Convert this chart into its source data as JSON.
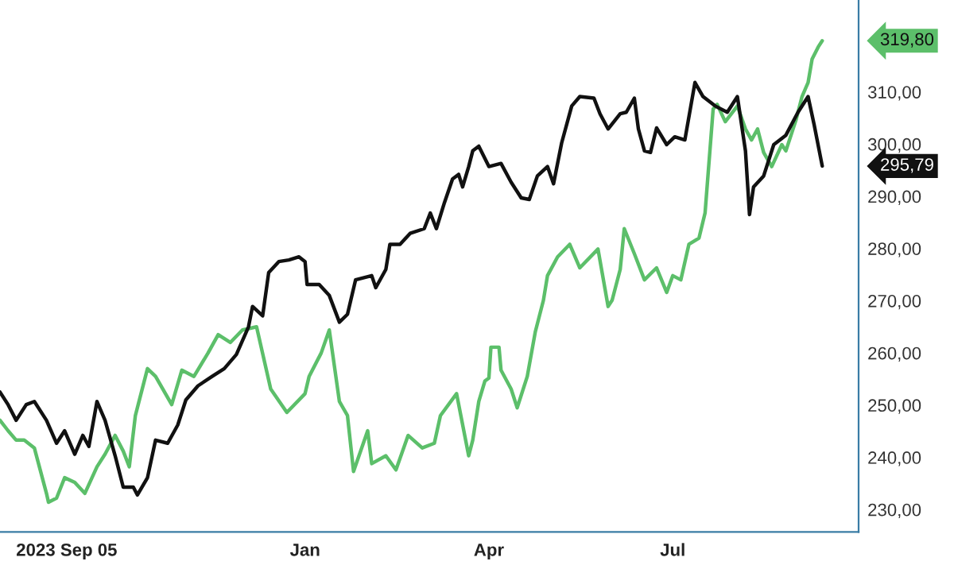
{
  "chart_data": {
    "type": "line",
    "xlim": [
      "2023-08-03",
      "2024-10-01"
    ],
    "ylim": [
      225.7,
      327.6
    ],
    "xticks": [
      {
        "value": "2023-09-05",
        "label": "2023 Sep 05"
      },
      {
        "value": "2024-01-01",
        "label": "Jan"
      },
      {
        "value": "2024-04-01",
        "label": "Apr"
      },
      {
        "value": "2024-07-01",
        "label": "Jul"
      }
    ],
    "yticks": [
      {
        "value": 230,
        "label": "230,00"
      },
      {
        "value": 240,
        "label": "240,00"
      },
      {
        "value": 250,
        "label": "250,00"
      },
      {
        "value": 260,
        "label": "260,00"
      },
      {
        "value": 270,
        "label": "270,00"
      },
      {
        "value": 280,
        "label": "280,00"
      },
      {
        "value": 290,
        "label": "290,00"
      },
      {
        "value": 300,
        "label": "300,00"
      },
      {
        "value": 310,
        "label": "310,00"
      }
    ],
    "grid": false,
    "legend": false,
    "annotations": [
      "319,80",
      "295,79"
    ],
    "series": [
      {
        "color": "#5cbf6a",
        "x": [
          "2023-08-03",
          "2023-08-07",
          "2023-08-11",
          "2023-08-15",
          "2023-08-20",
          "2023-08-26",
          "2023-08-27",
          "2023-08-31",
          "2023-09-04",
          "2023-09-09",
          "2023-09-14",
          "2023-09-20",
          "2023-09-24",
          "2023-09-29",
          "2023-10-03",
          "2023-10-06",
          "2023-10-09",
          "2023-10-15",
          "2023-10-19",
          "2023-10-27",
          "2023-11-01",
          "2023-11-07",
          "2023-11-14",
          "2023-11-19",
          "2023-11-25",
          "2023-12-01",
          "2023-12-08",
          "2023-12-15",
          "2023-12-23",
          "2024-01-01",
          "2024-01-03",
          "2024-01-09",
          "2024-01-13",
          "2024-01-18",
          "2024-01-22",
          "2024-01-25",
          "2024-02-01",
          "2024-02-03",
          "2024-02-10",
          "2024-02-15",
          "2024-02-21",
          "2024-02-28",
          "2024-03-05",
          "2024-03-08",
          "2024-03-16",
          "2024-03-22",
          "2024-03-24",
          "2024-03-27",
          "2024-03-30",
          "2024-04-01",
          "2024-04-02",
          "2024-04-06",
          "2024-04-07",
          "2024-04-12",
          "2024-04-15",
          "2024-04-20",
          "2024-04-24",
          "2024-04-28",
          "2024-04-30",
          "2024-05-05",
          "2024-05-11",
          "2024-05-16",
          "2024-05-25",
          "2024-05-30",
          "2024-06-01",
          "2024-06-05",
          "2024-06-07",
          "2024-06-12",
          "2024-06-17",
          "2024-06-23",
          "2024-06-28",
          "2024-07-01",
          "2024-07-05",
          "2024-07-09",
          "2024-07-14",
          "2024-07-17",
          "2024-07-21",
          "2024-07-23",
          "2024-07-27",
          "2024-08-02",
          "2024-08-06",
          "2024-08-09",
          "2024-08-12",
          "2024-08-15",
          "2024-08-19",
          "2024-08-24",
          "2024-08-26",
          "2024-08-31",
          "2024-09-03",
          "2024-09-06",
          "2024-09-08",
          "2024-09-11",
          "2024-09-13"
        ],
        "values": [
          247.1,
          245.1,
          243.3,
          243.3,
          241.8,
          233.1,
          231.4,
          232.2,
          236.1,
          235.2,
          233.1,
          238.2,
          240.6,
          244.2,
          241.2,
          238.2,
          248.0,
          257.0,
          255.5,
          250.1,
          256.7,
          255.5,
          260.0,
          263.5,
          262.0,
          264.4,
          265.0,
          253.1,
          248.6,
          252.2,
          255.5,
          260.0,
          264.4,
          250.7,
          248.0,
          237.3,
          245.1,
          238.8,
          240.3,
          237.6,
          244.2,
          241.8,
          242.7,
          248.0,
          252.2,
          240.3,
          243.3,
          250.7,
          254.6,
          255.2,
          261.1,
          261.1,
          256.7,
          253.1,
          249.5,
          255.5,
          264.1,
          270.1,
          274.8,
          278.4,
          280.8,
          276.3,
          279.9,
          268.9,
          270.1,
          276.0,
          283.8,
          279.0,
          274.0,
          276.3,
          271.6,
          274.8,
          274.0,
          280.8,
          282.0,
          286.8,
          306.7,
          307.6,
          304.3,
          307.3,
          302.9,
          300.8,
          302.9,
          298.4,
          295.7,
          299.9,
          298.7,
          304.6,
          309.1,
          311.8,
          316.3,
          318.6,
          319.8
        ]
      },
      {
        "color": "#111111",
        "x": [
          "2023-08-03",
          "2023-08-07",
          "2023-08-11",
          "2023-08-16",
          "2023-08-20",
          "2023-08-26",
          "2023-08-31",
          "2023-09-04",
          "2023-09-09",
          "2023-09-13",
          "2023-09-16",
          "2023-09-20",
          "2023-09-24",
          "2023-09-29",
          "2023-10-03",
          "2023-10-08",
          "2023-10-10",
          "2023-10-15",
          "2023-10-19",
          "2023-10-25",
          "2023-10-30",
          "2023-11-03",
          "2023-11-09",
          "2023-11-16",
          "2023-11-22",
          "2023-11-28",
          "2023-12-04",
          "2023-12-06",
          "2023-12-11",
          "2023-12-14",
          "2023-12-19",
          "2023-12-24",
          "2023-12-29",
          "2024-01-01",
          "2024-01-02",
          "2024-01-08",
          "2024-01-13",
          "2024-01-18",
          "2024-01-22",
          "2024-01-26",
          "2024-02-03",
          "2024-02-05",
          "2024-02-10",
          "2024-02-12",
          "2024-02-17",
          "2024-02-22",
          "2024-02-29",
          "2024-03-03",
          "2024-03-06",
          "2024-03-10",
          "2024-03-14",
          "2024-03-17",
          "2024-03-19",
          "2024-03-22",
          "2024-03-24",
          "2024-03-27",
          "2024-04-01",
          "2024-04-07",
          "2024-04-12",
          "2024-04-17",
          "2024-04-21",
          "2024-04-25",
          "2024-04-30",
          "2024-05-03",
          "2024-05-07",
          "2024-05-12",
          "2024-05-16",
          "2024-05-23",
          "2024-05-26",
          "2024-05-30",
          "2024-06-05",
          "2024-06-08",
          "2024-06-12",
          "2024-06-14",
          "2024-06-17",
          "2024-06-20",
          "2024-06-23",
          "2024-06-28",
          "2024-07-02",
          "2024-07-07",
          "2024-07-12",
          "2024-07-16",
          "2024-07-22",
          "2024-07-28",
          "2024-08-02",
          "2024-08-06",
          "2024-08-08",
          "2024-08-10",
          "2024-08-15",
          "2024-08-20",
          "2024-08-26",
          "2024-09-01",
          "2024-09-06",
          "2024-09-09",
          "2024-09-13"
        ],
        "values": [
          252.5,
          250.1,
          247.1,
          250.1,
          250.7,
          247.1,
          242.7,
          245.1,
          240.6,
          244.2,
          242.1,
          250.7,
          247.1,
          240.3,
          234.3,
          234.3,
          232.8,
          236.1,
          243.3,
          242.7,
          246.2,
          251.0,
          253.7,
          255.5,
          257.0,
          259.7,
          265.0,
          268.9,
          267.1,
          275.4,
          277.5,
          277.8,
          278.4,
          277.5,
          273.1,
          273.1,
          271.0,
          265.9,
          267.4,
          274.0,
          274.8,
          272.5,
          276.0,
          280.8,
          280.8,
          282.9,
          283.8,
          286.8,
          283.8,
          288.8,
          293.3,
          294.2,
          291.8,
          295.7,
          298.7,
          299.6,
          295.7,
          296.3,
          292.7,
          289.7,
          289.4,
          293.9,
          295.7,
          292.4,
          300.2,
          307.3,
          309.1,
          308.8,
          305.8,
          302.9,
          305.8,
          306.1,
          308.8,
          302.9,
          298.7,
          298.4,
          303.1,
          299.9,
          301.4,
          300.8,
          311.8,
          309.1,
          307.3,
          306.1,
          309.1,
          298.7,
          286.5,
          291.8,
          293.9,
          299.9,
          301.7,
          306.1,
          309.1,
          303.7,
          295.8
        ]
      }
    ]
  }
}
